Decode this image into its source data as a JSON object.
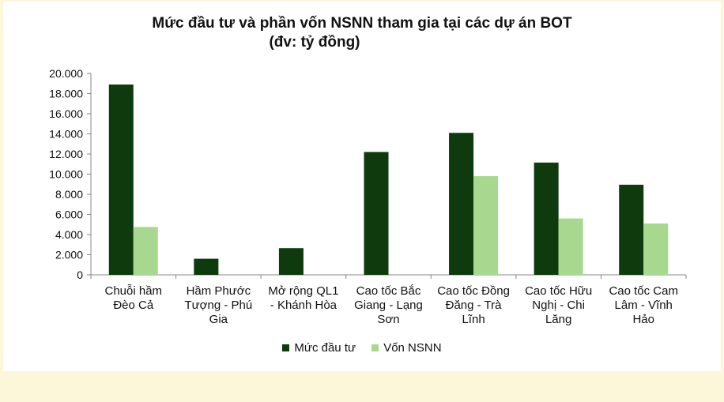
{
  "title_line1": "Mức đầu tư và phần vốn NSNN tham gia tại các dự án BOT",
  "title_line2": "(đv: tỷ đồng)",
  "colors": {
    "investment": "#0e3a0e",
    "state_budget": "#a8d88f",
    "background": "#fbf7d8"
  },
  "chart_data": {
    "type": "bar",
    "title": "Mức đầu tư và phần vốn NSNN tham gia tại các dự án BOT (đv: tỷ đồng)",
    "categories": [
      [
        "Chuỗi hầm",
        "Đèo Cả"
      ],
      [
        "Hầm Phước",
        "Tượng - Phú",
        "Gia"
      ],
      [
        "Mở rộng QL1",
        "- Khánh Hòa"
      ],
      [
        "Cao tốc Bắc",
        "Giang - Lạng",
        "Sơn"
      ],
      [
        "Cao tốc Đồng",
        "Đăng - Trà",
        "Lĩnh"
      ],
      [
        "Cao tốc Hữu",
        "Nghị - Chi",
        "Lăng"
      ],
      [
        "Cao tốc Cam",
        "Lâm - Vĩnh",
        "Hảo"
      ]
    ],
    "series": [
      {
        "name": "Mức đầu tư",
        "values": [
          18900,
          1600,
          2650,
          12200,
          14100,
          11150,
          8950
        ]
      },
      {
        "name": "Vốn NSNN",
        "values": [
          4750,
          0,
          0,
          0,
          9800,
          5600,
          5100
        ]
      }
    ],
    "ylim": [
      0,
      20000
    ],
    "yticks": [
      "0",
      "2.000",
      "4.000",
      "6.000",
      "8.000",
      "10.000",
      "12.000",
      "14.000",
      "16.000",
      "18.000",
      "20.000"
    ],
    "legend": "bottom",
    "grid": false
  }
}
